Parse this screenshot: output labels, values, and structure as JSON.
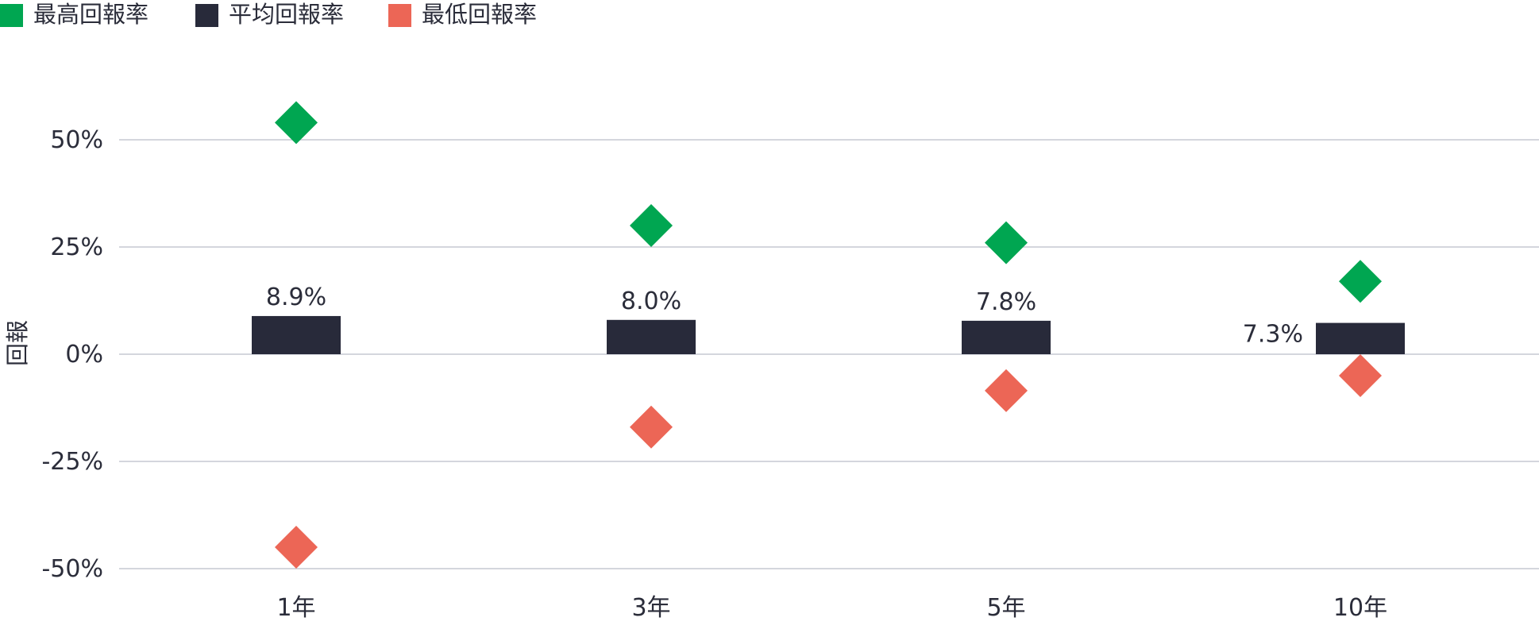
{
  "chart_data": {
    "type": "scatter",
    "categories": [
      "1年",
      "3年",
      "5年",
      "10年"
    ],
    "series": [
      {
        "name": "最高回報率",
        "marker": "diamond",
        "color": "#00a651",
        "values": [
          54,
          30,
          26,
          17
        ]
      },
      {
        "name": "平均回報率",
        "marker": "bar",
        "color": "#282a3a",
        "values": [
          8.9,
          8.0,
          7.8,
          7.3
        ],
        "labels": [
          "8.9%",
          "8.0%",
          "7.8%",
          "7.3%"
        ]
      },
      {
        "name": "最低回報率",
        "marker": "diamond",
        "color": "#ec6656",
        "values": [
          -45,
          -17,
          -8.5,
          -5
        ]
      }
    ],
    "ylabel": "回報",
    "xlabel": "",
    "ylim": [
      -50,
      50
    ],
    "yticks": [
      50,
      25,
      0,
      -25,
      -50
    ],
    "ytick_labels": [
      "50%",
      "25%",
      "0%",
      "-25%",
      "-50%"
    ],
    "grid": true,
    "legend_position": "top-left"
  }
}
